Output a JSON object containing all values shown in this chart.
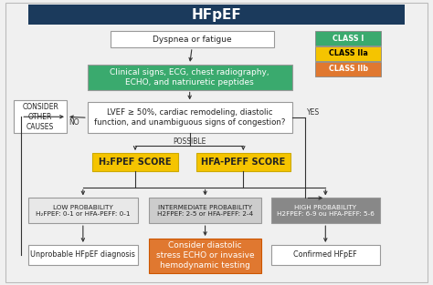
{
  "title": "HFpEF",
  "title_bg": "#1b3a5c",
  "title_color": "white",
  "bg_color": "#f0f0f0",
  "legend": {
    "items": [
      "CLASS I",
      "CLASS IIa",
      "CLASS IIb"
    ],
    "colors": [
      "#3aaa6e",
      "#f5c400",
      "#e07830"
    ],
    "text_colors": [
      "white",
      "black",
      "white"
    ]
  },
  "boxes": {
    "dyspnea": {
      "text": "Dyspnea or fatigue",
      "bg": "white",
      "fc": "#222222",
      "fs": 6.5,
      "bold": false
    },
    "clinical": {
      "text": "Clinical signs, ECG, chest radiography,\nECHO, and natriuretic peptides",
      "bg": "#3aaa6e",
      "fc": "white",
      "fs": 6.5,
      "bold": false
    },
    "lvef": {
      "text": "LVEF ≥ 50%, cardiac remodeling, diastolic\nfunction, and unambiguous signs of congestion?",
      "bg": "white",
      "fc": "#222222",
      "fs": 6.2,
      "bold": false
    },
    "consider": {
      "text": "CONSIDER\nOTHER\nCAUSES",
      "bg": "white",
      "fc": "#222222",
      "fs": 5.5,
      "bold": false
    },
    "h2fpef": {
      "text": "H₂FPEF SCORE",
      "bg": "#f5c400",
      "fc": "#222222",
      "fs": 7.0,
      "bold": true
    },
    "hfapeff": {
      "text": "HFA-PEFF SCORE",
      "bg": "#f5c400",
      "fc": "#222222",
      "fs": 7.0,
      "bold": true
    },
    "low": {
      "text": "LOW PROBABILITY\nH₂FPEF: 0-1 or HFA-PEFF: 0-1",
      "bg": "#e8e8e8",
      "fc": "#222222",
      "fs": 5.2,
      "bold": false
    },
    "intermediate": {
      "text": "INTERMEDIATE PROBABILITY\nH2FPEF: 2-5 or HFA-PEFF: 2-4",
      "bg": "#cccccc",
      "fc": "#222222",
      "fs": 5.2,
      "bold": false
    },
    "high": {
      "text": "HIGH PROBABILITY\nH2FPEF: 6-9 ou HFA-PEFF: 5-6",
      "bg": "#888888",
      "fc": "white",
      "fs": 5.2,
      "bold": false
    },
    "unprobable": {
      "text": "Unprobable HFpEF diagnosis",
      "bg": "white",
      "fc": "#222222",
      "fs": 5.8,
      "bold": false
    },
    "stress": {
      "text": "Consider diastolic\nstress ECHO or invasive\nhemodynamic testing",
      "bg": "#e07830",
      "fc": "white",
      "fs": 6.5,
      "bold": false
    },
    "confirmed": {
      "text": "Confirmed HFpEF",
      "bg": "white",
      "fc": "#222222",
      "fs": 5.8,
      "bold": false
    }
  }
}
